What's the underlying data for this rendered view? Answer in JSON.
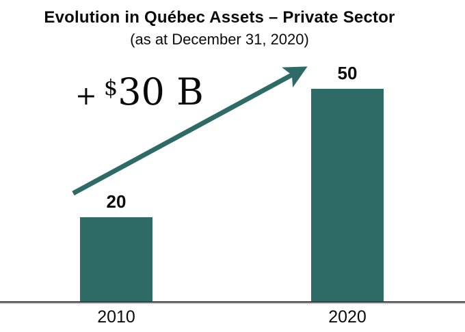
{
  "chart_data": {
    "type": "bar",
    "title": "Evolution in Québec Assets – Private Sector",
    "subtitle": "(as at December 31, 2020)",
    "categories": [
      "2010",
      "2020"
    ],
    "values": [
      20,
      50
    ],
    "unit": "billions CAD",
    "ylim": [
      0,
      55
    ],
    "grid": false,
    "legend": false,
    "bar_color": "#2F6B66",
    "arrow_color": "#2F6B66",
    "axis_color": "#3d3d3d",
    "annotation": {
      "plus": "+",
      "currency": "$",
      "amount": "30 B",
      "meaning": "increase of 30 billion dollars from 2010 to 2020"
    }
  }
}
